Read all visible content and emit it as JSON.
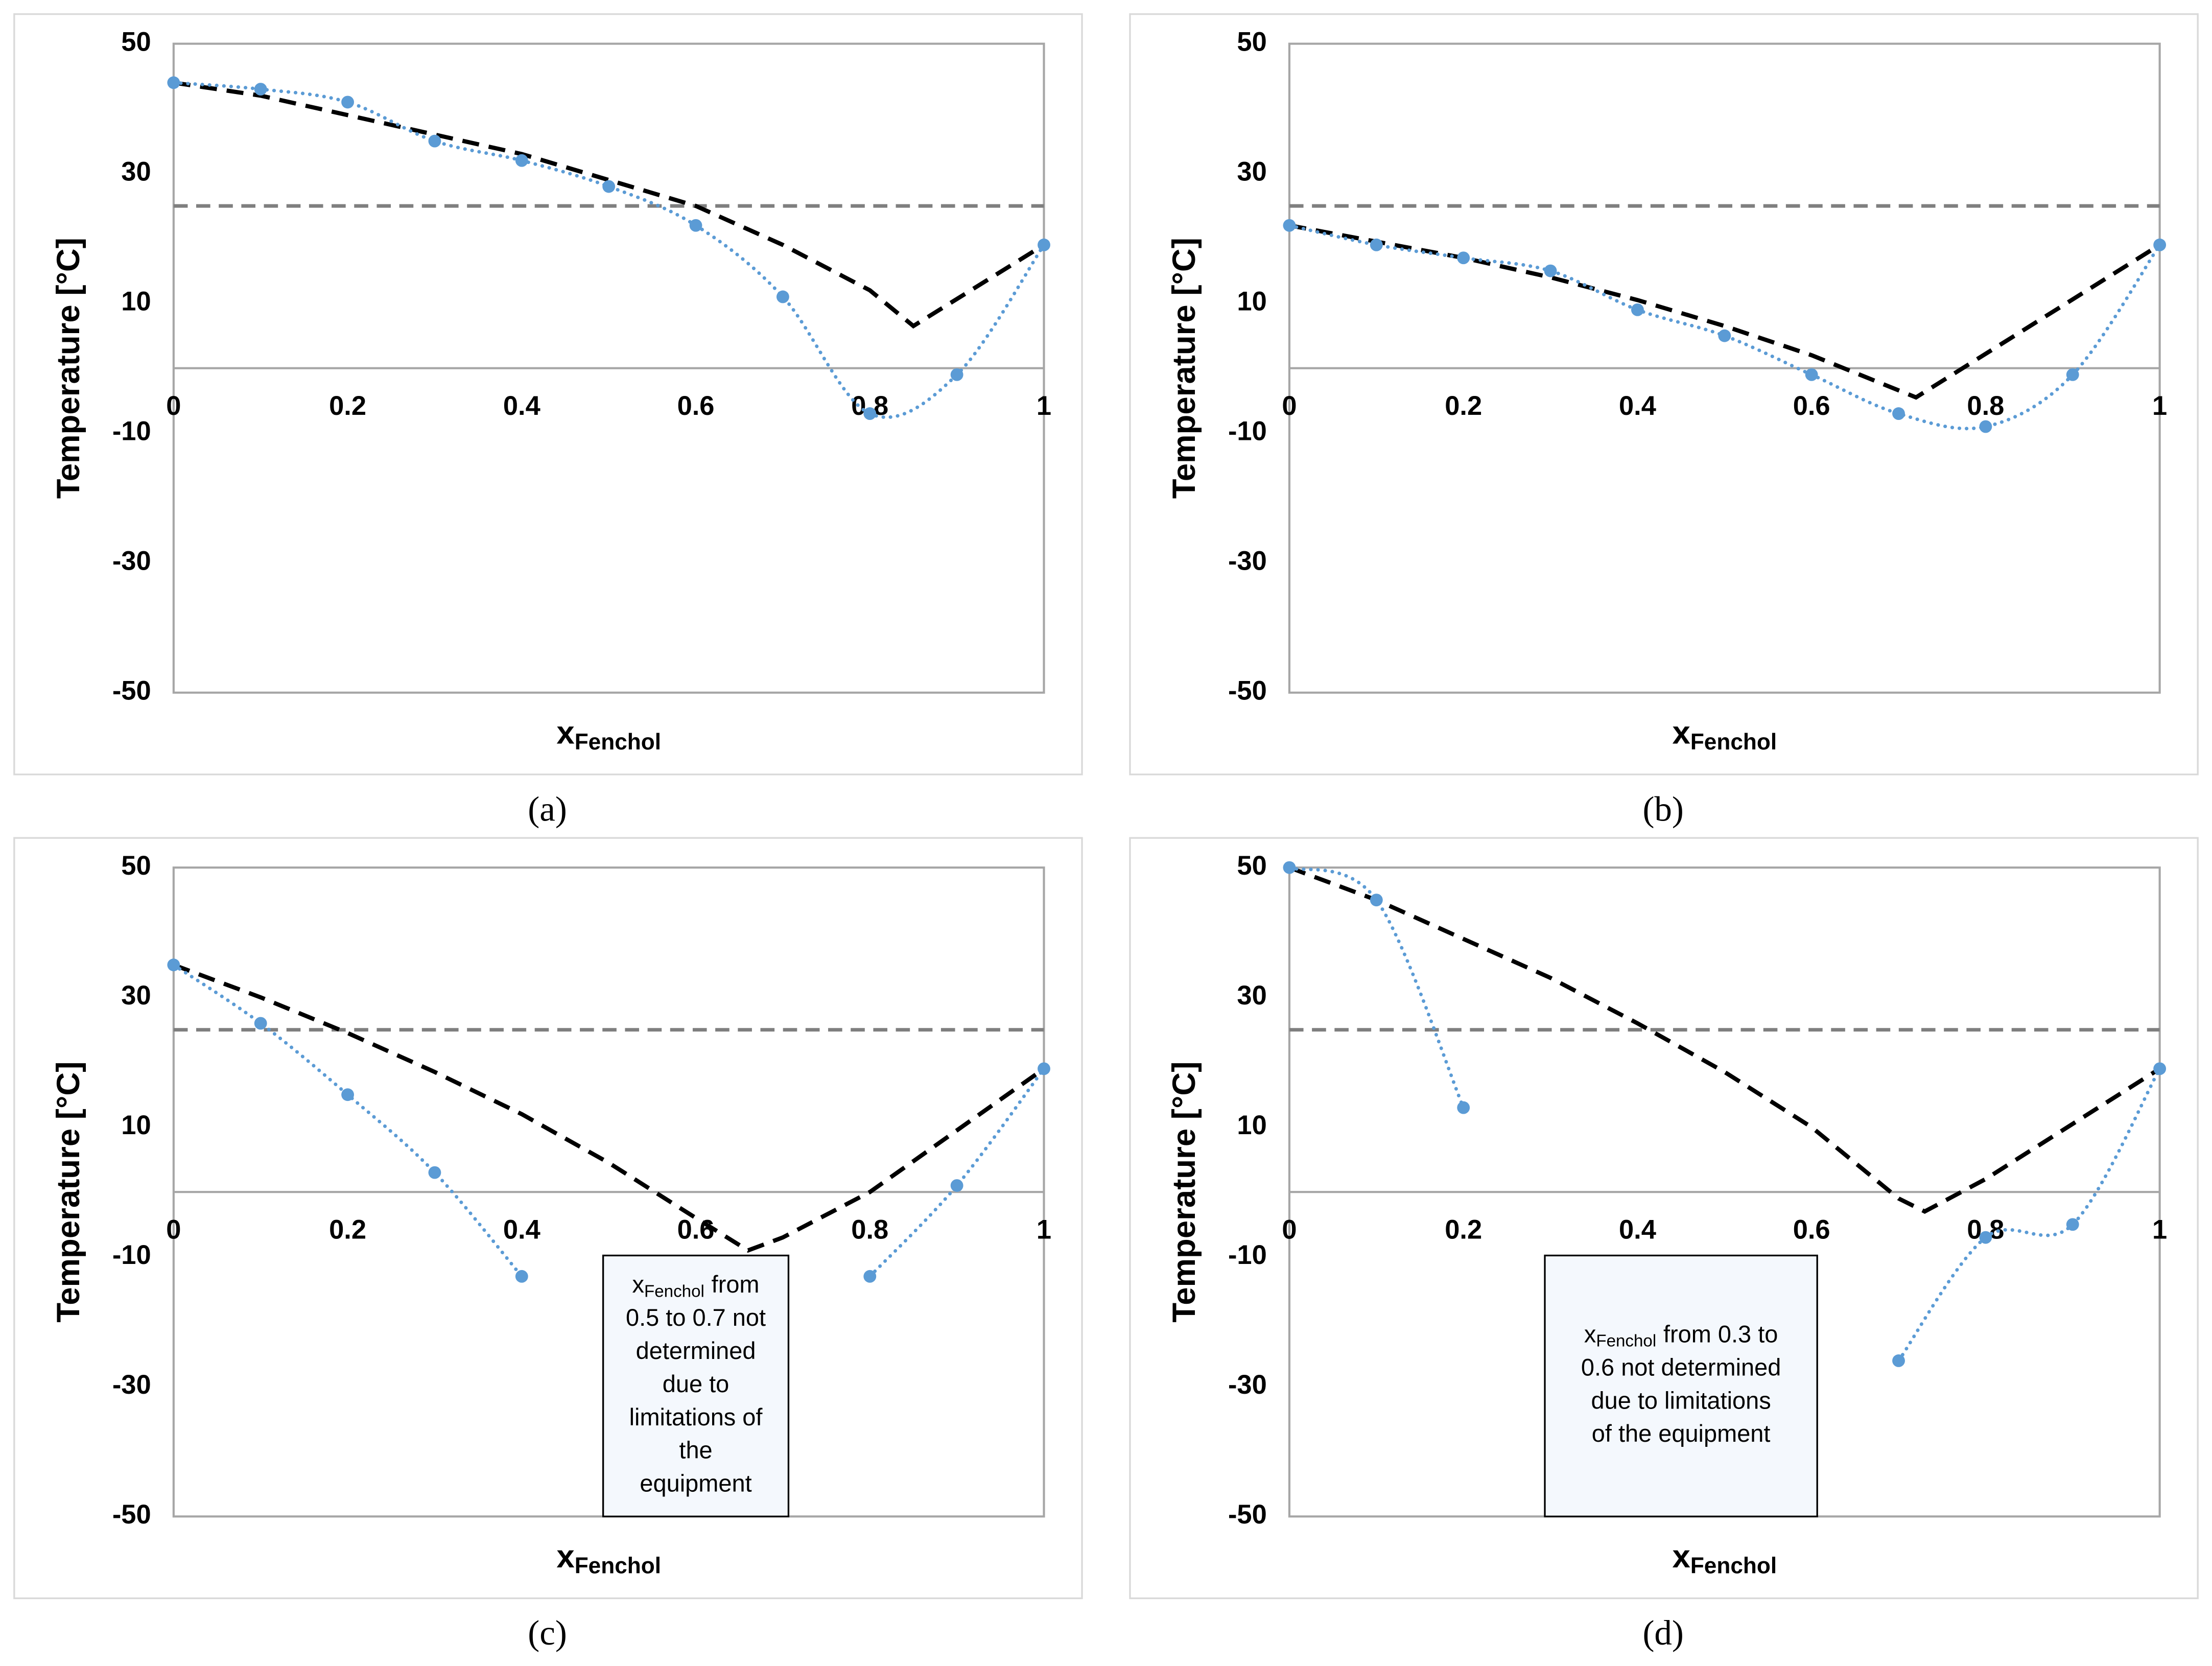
{
  "chart_data": [
    {
      "type": "line",
      "panel_label": "(a)",
      "ylabel": "Temperature [°C]",
      "xlabel": "x",
      "xlabel_sub": "Fenchol",
      "xlim": [
        0,
        1
      ],
      "ylim": [
        -50,
        50
      ],
      "xticks": [
        0,
        0.2,
        0.4,
        0.6,
        0.8,
        1
      ],
      "yticks": [
        -50,
        -30,
        -10,
        10,
        30,
        50
      ],
      "x_axis_at": 0,
      "reference_line": 25,
      "reference_color": "#7f7f7f",
      "series": [
        {
          "color": "#000000",
          "style": "dashed",
          "smooth": false,
          "markers": false,
          "x": [
            0,
            0.1,
            0.2,
            0.3,
            0.4,
            0.5,
            0.6,
            0.7,
            0.8,
            0.85,
            1
          ],
          "values": [
            44,
            42,
            39,
            36,
            33,
            29,
            25,
            19,
            12,
            6.5,
            19
          ]
        },
        {
          "color": "#5b9bd5",
          "style": "dotted",
          "smooth": true,
          "markers": true,
          "x": [
            0,
            0.1,
            0.2,
            0.3,
            0.4,
            0.5,
            0.6,
            0.7,
            0.8,
            0.9,
            1
          ],
          "values": [
            44,
            43,
            41,
            35,
            32,
            28,
            22,
            11,
            -7,
            -1,
            19
          ]
        }
      ]
    },
    {
      "type": "line",
      "panel_label": "(b)",
      "ylabel": "Temperature [°C]",
      "xlabel": "x",
      "xlabel_sub": "Fenchol",
      "xlim": [
        0,
        1
      ],
      "ylim": [
        -50,
        50
      ],
      "xticks": [
        0,
        0.2,
        0.4,
        0.6,
        0.8,
        1
      ],
      "yticks": [
        -50,
        -30,
        -10,
        10,
        30,
        50
      ],
      "x_axis_at": 0,
      "reference_line": 25,
      "reference_color": "#7f7f7f",
      "series": [
        {
          "color": "#000000",
          "style": "dashed",
          "smooth": false,
          "markers": false,
          "x": [
            0,
            0.1,
            0.2,
            0.3,
            0.4,
            0.5,
            0.6,
            0.72,
            1
          ],
          "values": [
            22,
            19.5,
            17,
            14,
            10.5,
            6.5,
            2,
            -4.5,
            19
          ]
        },
        {
          "color": "#5b9bd5",
          "style": "dotted",
          "smooth": true,
          "markers": true,
          "x": [
            0,
            0.1,
            0.2,
            0.3,
            0.4,
            0.5,
            0.6,
            0.7,
            0.8,
            0.9,
            1
          ],
          "values": [
            22,
            19,
            17,
            15,
            9,
            5,
            -1,
            -7,
            -9,
            -1,
            19
          ]
        }
      ]
    },
    {
      "type": "line",
      "panel_label": "(c)",
      "ylabel": "Temperature [°C]",
      "xlabel": "x",
      "xlabel_sub": "Fenchol",
      "xlim": [
        0,
        1
      ],
      "ylim": [
        -50,
        50
      ],
      "xticks": [
        0,
        0.2,
        0.4,
        0.6,
        0.8,
        1
      ],
      "yticks": [
        -50,
        -30,
        -10,
        10,
        30,
        50
      ],
      "x_axis_at": 0,
      "reference_line": 25,
      "reference_color": "#7f7f7f",
      "annotation": {
        "x": "x",
        "sub": "Fenchol",
        "lines": [
          "from",
          "0.5 to 0.7 not",
          "determined",
          "due to",
          "limitations of",
          "the",
          "equipment"
        ]
      },
      "series": [
        {
          "color": "#000000",
          "style": "dashed",
          "smooth": false,
          "markers": false,
          "x": [
            0,
            0.1,
            0.2,
            0.3,
            0.4,
            0.5,
            0.6,
            0.66,
            0.7,
            0.8,
            0.9,
            1
          ],
          "values": [
            35,
            30,
            24.5,
            18.5,
            12,
            4.5,
            -4,
            -9,
            -7,
            0,
            9.5,
            19
          ]
        },
        {
          "color": "#5b9bd5",
          "style": "dotted",
          "smooth": true,
          "markers": true,
          "x": [
            0,
            0.1,
            0.2,
            0.3,
            0.4,
            0.5,
            0.6,
            0.7,
            0.8,
            0.9,
            1
          ],
          "values": [
            35,
            26,
            15,
            3,
            -13,
            null,
            null,
            null,
            -13,
            1,
            19
          ]
        }
      ]
    },
    {
      "type": "line",
      "panel_label": "(d)",
      "ylabel": "Temperature [°C]",
      "xlabel": "x",
      "xlabel_sub": "Fenchol",
      "xlim": [
        0,
        1
      ],
      "ylim": [
        -50,
        50
      ],
      "xticks": [
        0,
        0.2,
        0.4,
        0.6,
        0.8,
        1
      ],
      "yticks": [
        -50,
        -30,
        -10,
        10,
        30,
        50
      ],
      "x_axis_at": 0,
      "reference_line": 25,
      "reference_color": "#7f7f7f",
      "annotation": {
        "x": "x",
        "sub": "Fenchol",
        "lines": [
          "from 0.3 to",
          "0.6 not determined",
          "due to limitations",
          "of the equipment"
        ]
      },
      "series": [
        {
          "color": "#000000",
          "style": "dashed",
          "smooth": false,
          "markers": false,
          "x": [
            0,
            0.1,
            0.2,
            0.3,
            0.4,
            0.5,
            0.6,
            0.7,
            0.73,
            0.8,
            0.9,
            1
          ],
          "values": [
            50,
            45,
            39,
            33,
            26,
            18.5,
            10,
            -1,
            -3,
            2,
            10.5,
            19
          ]
        },
        {
          "color": "#5b9bd5",
          "style": "dotted",
          "smooth": true,
          "markers": true,
          "x": [
            0,
            0.1,
            0.2,
            0.3,
            0.4,
            0.5,
            0.6,
            0.7,
            0.8,
            0.9,
            1
          ],
          "values": [
            50,
            45,
            13,
            null,
            null,
            null,
            null,
            -26,
            -7,
            -5,
            19
          ]
        }
      ]
    }
  ]
}
